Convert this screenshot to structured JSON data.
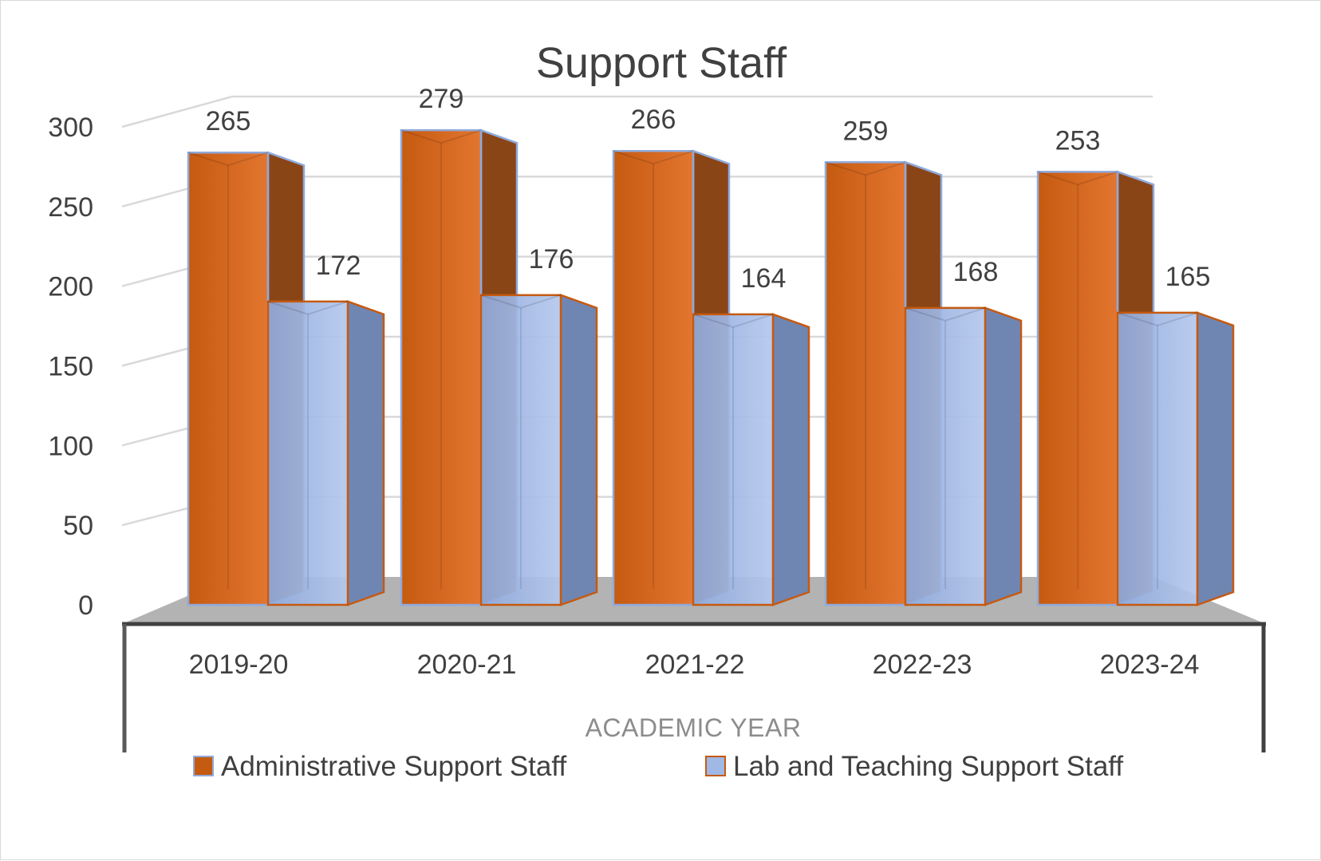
{
  "chart_data": {
    "type": "bar",
    "title": "Support Staff",
    "xlabel": "ACADEMIC YEAR",
    "ylabel": "",
    "categories": [
      "2019-20",
      "2020-21",
      "2021-22",
      "2022-23",
      "2023-24"
    ],
    "series": [
      {
        "name": "Administrative Support Staff",
        "values": [
          265,
          279,
          266,
          259,
          253
        ],
        "color": "#c55a11"
      },
      {
        "name": "Lab and Teaching Support Staff",
        "values": [
          172,
          176,
          164,
          168,
          165
        ],
        "color": "#9fb8e6"
      }
    ],
    "yticks": [
      "0",
      "50",
      "100",
      "150",
      "200",
      "250",
      "300"
    ],
    "ylim": [
      0,
      300
    ],
    "grid": true,
    "legend_position": "bottom",
    "style": "3d-clustered-column",
    "colors": {
      "admin_fill": "#c55a11",
      "lab_fill": "#9fb8e6",
      "floor": "#b3b3b3",
      "gridline": "#d9d9d9"
    }
  }
}
